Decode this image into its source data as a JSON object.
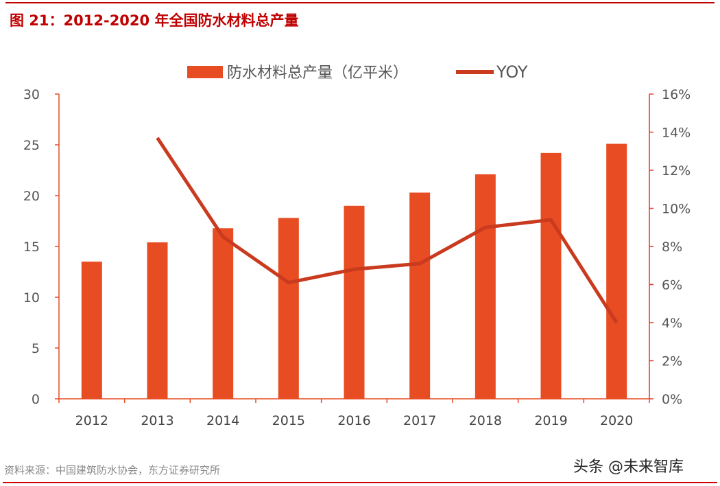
{
  "title": "图 21：2012-2020 年全国防水材料总产量",
  "source": "资料来源：中国建筑防水协会，东方证券研究所",
  "watermark": "头条 @未来智库",
  "colors": {
    "bar": "#e84c22",
    "line": "#c93a1e",
    "right_axis": "#e03a2a",
    "title": "#c00000"
  },
  "chart_data": {
    "type": "bar+line",
    "categories": [
      "2012",
      "2013",
      "2014",
      "2015",
      "2016",
      "2017",
      "2018",
      "2019",
      "2020"
    ],
    "series": [
      {
        "name": "防水材料总产量（亿平米）",
        "type": "bar",
        "axis": "left",
        "values": [
          13.5,
          15.4,
          16.8,
          17.8,
          19.0,
          20.3,
          22.1,
          24.2,
          25.1
        ]
      },
      {
        "name": "YOY",
        "type": "line",
        "axis": "right",
        "values": [
          null,
          13.7,
          8.5,
          6.1,
          6.8,
          7.1,
          9.0,
          9.4,
          4.0
        ]
      }
    ],
    "left_axis": {
      "ylim": [
        0,
        30
      ],
      "ticks": [
        "0",
        "5",
        "10",
        "15",
        "20",
        "25",
        "30"
      ]
    },
    "right_axis": {
      "ylim": [
        0,
        16
      ],
      "ticks": [
        "0%",
        "2%",
        "4%",
        "6%",
        "8%",
        "10%",
        "12%",
        "14%",
        "16%"
      ]
    },
    "legend": "top-center",
    "grid": false
  }
}
